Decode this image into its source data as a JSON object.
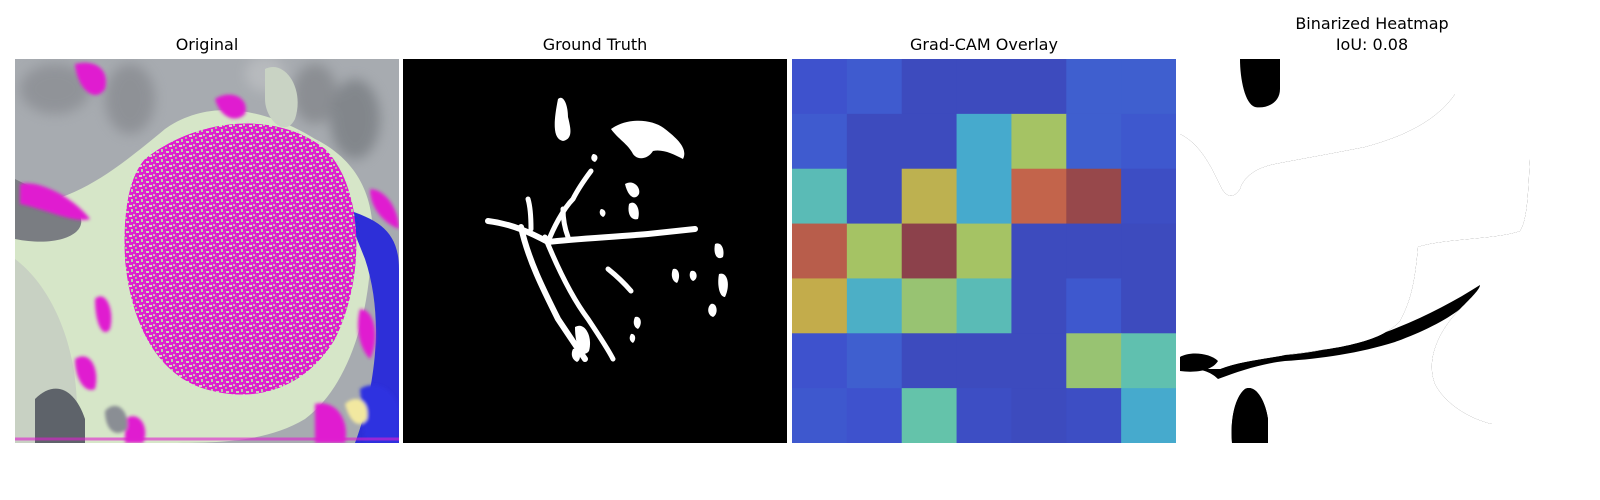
{
  "panels": [
    {
      "title": "Original"
    },
    {
      "title": "Ground Truth"
    },
    {
      "title": "Grad-CAM Overlay"
    },
    {
      "title": "Binarized Heatmap",
      "subtitle": "IoU: 0.08"
    }
  ],
  "gradcam_grid": [
    [
      0.15,
      0.2,
      0.1,
      0.1,
      0.1,
      0.22,
      0.22
    ],
    [
      0.2,
      0.1,
      0.1,
      0.45,
      0.7,
      0.22,
      0.18
    ],
    [
      0.55,
      0.1,
      0.78,
      0.45,
      0.9,
      0.98,
      0.12
    ],
    [
      0.92,
      0.7,
      1.0,
      0.7,
      0.1,
      0.1,
      0.1
    ],
    [
      0.8,
      0.48,
      0.68,
      0.55,
      0.1,
      0.18,
      0.1
    ],
    [
      0.15,
      0.22,
      0.1,
      0.1,
      0.1,
      0.68,
      0.58
    ],
    [
      0.18,
      0.15,
      0.6,
      0.12,
      0.1,
      0.12,
      0.45
    ]
  ]
}
